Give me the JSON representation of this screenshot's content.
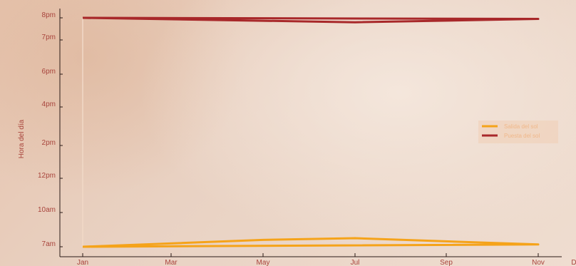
{
  "chart_data": {
    "type": "line",
    "ylabel": "Hora del día",
    "x_ticks": [
      "Jan",
      "Mar",
      "May",
      "Jul",
      "Sep",
      "Nov",
      "D"
    ],
    "y_ticks": [
      {
        "label": "7am",
        "value": 7
      },
      {
        "label": "10am",
        "value": 10
      },
      {
        "label": "12pm",
        "value": 12
      },
      {
        "label": "2pm",
        "value": 14
      },
      {
        "label": "4pm",
        "value": 16
      },
      {
        "label": "6pm",
        "value": 18
      },
      {
        "label": "7pm",
        "value": 19
      },
      {
        "label": "8pm",
        "value": 20
      }
    ],
    "series": [
      {
        "name": "Salida del sol",
        "color": "#f5a31a",
        "points": [
          {
            "x": "Jan",
            "y": 7.0
          },
          {
            "x": "May",
            "y": 7.6
          },
          {
            "x": "Jul",
            "y": 7.75
          },
          {
            "x": "Nov",
            "y": 7.2
          },
          {
            "x": "Jan",
            "y": 7.0
          }
        ]
      },
      {
        "name": "Puesta del sol",
        "color": "#a8282a",
        "points": [
          {
            "x": "Jan",
            "y": 20.0
          },
          {
            "x": "Jul",
            "y": 19.8
          },
          {
            "x": "Nov",
            "y": 19.95
          },
          {
            "x": "Jan",
            "y": 20.0
          }
        ]
      }
    ],
    "legend": {
      "position": "right"
    }
  }
}
